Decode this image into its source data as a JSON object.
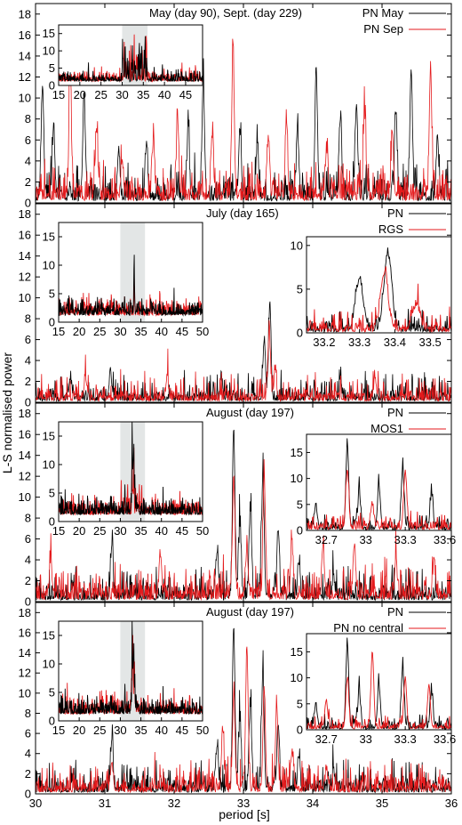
{
  "figure": {
    "xlabel": "period [s]",
    "ylabel": "L-S normalised power"
  },
  "colors": {
    "primary": "#000000",
    "secondary": "#e41a1c",
    "highlight": "#e3e6e6"
  },
  "chart_data": [
    {
      "type": "line",
      "panel": "top",
      "title": "May (day 90), Sept. (day 229)",
      "xlim": [
        30,
        36
      ],
      "ylim": [
        0,
        19
      ],
      "xticks": [
        30,
        31,
        32,
        33,
        34,
        35,
        36
      ],
      "yticks": [
        0,
        2,
        4,
        6,
        8,
        10,
        12,
        14,
        16,
        18
      ],
      "legend": "top-right",
      "series": [
        {
          "name": "PN May",
          "color": "#000000",
          "baseline": 1.3,
          "noise": 1.2,
          "seed": 11,
          "peaks": [
            [
              30.1,
              11.8
            ],
            [
              30.26,
              8.2
            ],
            [
              30.7,
              11.3
            ],
            [
              31.2,
              6.0
            ],
            [
              31.6,
              6.5
            ],
            [
              32.2,
              7.2
            ],
            [
              32.42,
              12.0
            ],
            [
              32.95,
              8.0
            ],
            [
              33.2,
              6.5
            ],
            [
              33.78,
              7.0
            ],
            [
              34.05,
              13.6
            ],
            [
              34.4,
              9.0
            ],
            [
              34.63,
              10.3
            ],
            [
              35.2,
              9.5
            ],
            [
              35.42,
              13.8
            ],
            [
              35.8,
              7.0
            ]
          ]
        },
        {
          "name": "PN Sep",
          "color": "#e41a1c",
          "baseline": 1.5,
          "noise": 1.2,
          "seed": 29,
          "peaks": [
            [
              30.5,
              12.8
            ],
            [
              30.88,
              8.0
            ],
            [
              31.25,
              5.2
            ],
            [
              31.7,
              7.0
            ],
            [
              32.05,
              9.0
            ],
            [
              32.55,
              7.5
            ],
            [
              32.85,
              15.4
            ],
            [
              33.36,
              7.3
            ],
            [
              33.62,
              8.4
            ],
            [
              34.2,
              6.0
            ],
            [
              34.75,
              9.2
            ],
            [
              35.15,
              7.5
            ],
            [
              35.7,
              14.0
            ]
          ]
        }
      ],
      "inset": {
        "xlim": [
          15,
          49
        ],
        "ylim": [
          0,
          17.5
        ],
        "xticks": [
          15,
          20,
          25,
          30,
          35,
          40,
          45
        ],
        "yticks": [
          0,
          5,
          10,
          15
        ],
        "highlight": [
          30,
          36
        ]
      }
    },
    {
      "type": "line",
      "panel": "second",
      "title": "July (day 165)",
      "xlim": [
        30,
        36
      ],
      "ylim": [
        0,
        19
      ],
      "xticks": [
        30,
        31,
        32,
        33,
        34,
        35,
        36
      ],
      "yticks": [
        0,
        2,
        4,
        6,
        8,
        10,
        12,
        14,
        16,
        18
      ],
      "legend": "top-right",
      "series": [
        {
          "name": "PN",
          "color": "#000000",
          "baseline": 0.8,
          "noise": 1.0,
          "seed": 5,
          "peaks": [
            [
              33.38,
              9.6
            ],
            [
              33.3,
              6.5
            ],
            [
              31.08,
              3.5
            ],
            [
              30.5,
              2.8
            ],
            [
              32.68,
              3.0
            ],
            [
              34.4,
              2.6
            ]
          ]
        },
        {
          "name": "RGS",
          "color": "#e41a1c",
          "baseline": 0.8,
          "noise": 1.0,
          "seed": 17,
          "peaks": [
            [
              33.37,
              7.3
            ],
            [
              33.46,
              3.6
            ],
            [
              30.72,
              3.0
            ],
            [
              31.9,
              3.0
            ],
            [
              34.9,
              2.8
            ]
          ]
        }
      ],
      "inset": {
        "xlim": [
          15,
          50
        ],
        "ylim": [
          0,
          17.5
        ],
        "xticks": [
          15,
          20,
          25,
          30,
          35,
          40,
          45,
          50
        ],
        "yticks": [
          0,
          5,
          10,
          15
        ],
        "highlight": [
          30,
          36
        ]
      },
      "zoom": {
        "xlim": [
          33.15,
          33.56
        ],
        "ylim": [
          0,
          11
        ],
        "xticks": [
          33.2,
          33.3,
          33.4,
          33.5
        ],
        "yticks": [
          0,
          5,
          10
        ]
      }
    },
    {
      "type": "line",
      "panel": "third",
      "title": "August (day 197)",
      "xlim": [
        30,
        36
      ],
      "ylim": [
        0,
        19
      ],
      "xticks": [
        30,
        31,
        32,
        33,
        34,
        35,
        36
      ],
      "yticks": [
        0,
        2,
        4,
        6,
        8,
        10,
        12,
        14,
        16,
        18
      ],
      "legend": "top-right",
      "series": [
        {
          "name": "PN",
          "color": "#000000",
          "baseline": 1.0,
          "noise": 1.1,
          "seed": 41,
          "peaks": [
            [
              32.86,
              17.3
            ],
            [
              33.28,
              12.8
            ],
            [
              32.95,
              8.0
            ],
            [
              33.1,
              9.5
            ],
            [
              33.5,
              7.5
            ],
            [
              32.62,
              5.5
            ],
            [
              31.1,
              5.8
            ],
            [
              33.8,
              4.0
            ],
            [
              34.3,
              3.0
            ]
          ]
        },
        {
          "name": "MOS1",
          "color": "#e41a1c",
          "baseline": 1.3,
          "noise": 1.2,
          "seed": 53,
          "peaks": [
            [
              32.86,
              12.8
            ],
            [
              33.3,
              12.6
            ],
            [
              33.05,
              6.0
            ],
            [
              33.7,
              6.5
            ],
            [
              34.15,
              5.8
            ],
            [
              34.6,
              6.3
            ],
            [
              30.22,
              4.8
            ],
            [
              31.8,
              5.0
            ],
            [
              35.2,
              5.0
            ],
            [
              35.75,
              4.8
            ]
          ]
        }
      ],
      "inset": {
        "xlim": [
          15,
          50
        ],
        "ylim": [
          0,
          17.5
        ],
        "xticks": [
          15,
          20,
          25,
          30,
          35,
          40,
          45,
          50
        ],
        "yticks": [
          0,
          5,
          10,
          15
        ],
        "highlight": [
          30,
          36
        ]
      },
      "zoom": {
        "xlim": [
          32.55,
          33.65
        ],
        "ylim": [
          0,
          18.5
        ],
        "xticks": [
          32.7,
          33.0,
          33.3,
          33.6
        ],
        "yticks": [
          0,
          5,
          10,
          15
        ]
      }
    },
    {
      "type": "line",
      "panel": "bottom",
      "title": "August (day 197)",
      "xlim": [
        30,
        36
      ],
      "ylim": [
        0,
        19
      ],
      "xticks": [
        30,
        31,
        32,
        33,
        34,
        35,
        36
      ],
      "yticks": [
        0,
        2,
        4,
        6,
        8,
        10,
        12,
        14,
        16,
        18
      ],
      "legend": "top-right",
      "series": [
        {
          "name": "PN",
          "color": "#000000",
          "baseline": 1.0,
          "noise": 1.1,
          "seed": 41,
          "peaks": [
            [
              32.86,
              17.3
            ],
            [
              33.28,
              12.8
            ],
            [
              32.95,
              8.0
            ],
            [
              33.1,
              9.5
            ],
            [
              33.5,
              7.5
            ],
            [
              32.62,
              5.5
            ],
            [
              31.1,
              5.8
            ],
            [
              33.8,
              4.0
            ],
            [
              34.3,
              3.0
            ]
          ]
        },
        {
          "name": "PN no central",
          "color": "#e41a1c",
          "baseline": 1.1,
          "noise": 1.1,
          "seed": 67,
          "peaks": [
            [
              32.86,
              10.5
            ],
            [
              33.05,
              15.5
            ],
            [
              33.3,
              11.0
            ],
            [
              33.48,
              9.5
            ],
            [
              32.7,
              6.5
            ],
            [
              33.7,
              5.0
            ],
            [
              31.1,
              4.0
            ],
            [
              34.2,
              3.2
            ]
          ]
        }
      ],
      "inset": {
        "xlim": [
          15,
          50
        ],
        "ylim": [
          0,
          17.5
        ],
        "xticks": [
          15,
          20,
          25,
          30,
          35,
          40,
          45,
          50
        ],
        "yticks": [
          0,
          5,
          10,
          15
        ],
        "highlight": [
          30,
          36
        ]
      },
      "zoom": {
        "xlim": [
          32.55,
          33.65
        ],
        "ylim": [
          0,
          18.5
        ],
        "xticks": [
          32.7,
          33.0,
          33.3,
          33.6
        ],
        "yticks": [
          0,
          5,
          10,
          15
        ]
      }
    }
  ]
}
